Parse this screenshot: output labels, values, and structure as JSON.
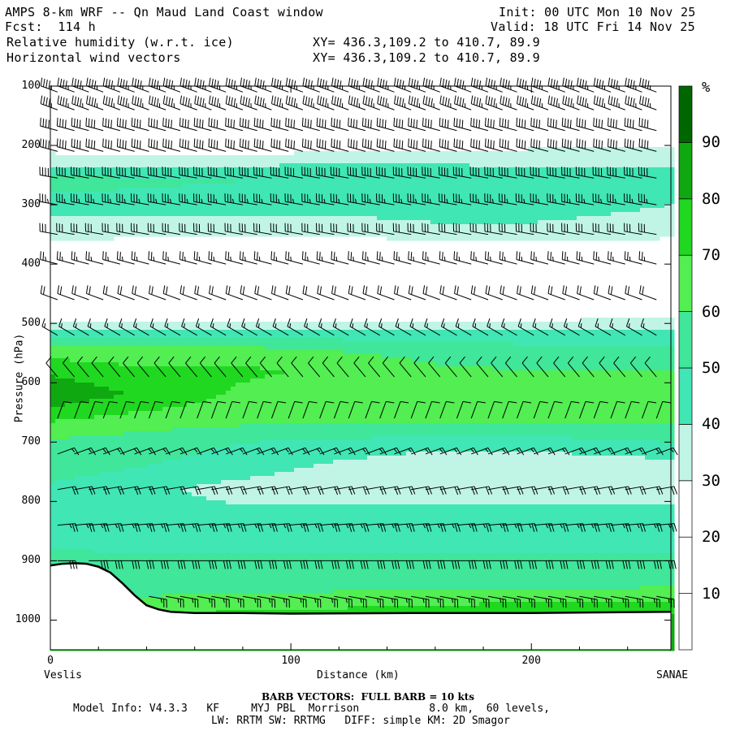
{
  "header": {
    "title": "AMPS 8-km WRF -- Qn Maud Land Coast window",
    "forecast": "Fcst:  114 h",
    "init": "Init: 00 UTC Mon 10 Nov 25",
    "valid": "Valid: 18 UTC Fri 14 Nov 25",
    "field1": "Relative humidity (w.r.t. ice)",
    "field2": "Horizontal wind vectors",
    "xy1": "XY= 436.3,109.2 to 410.7, 89.9",
    "xy2": "XY= 436.3,109.2 to 410.7, 89.9"
  },
  "footer": {
    "barb_note": "BARB VECTORS:  FULL BARB = 10 kts",
    "model_info": "Model Info: V4.3.3   KF     MYJ PBL  Morrison           8.0 km,  60 levels,",
    "model_info2": "LW: RRTM SW: RRTMG   DIFF: simple KM: 2D Smagor"
  },
  "colors": {
    "levels": [
      "#ffffff",
      "#ffffff",
      "#ffffff",
      "#c0f5e6",
      "#40e6b4",
      "#40e69a",
      "#52ee52",
      "#20d820",
      "#10a810",
      "#006600"
    ],
    "background": "#ffffff",
    "terrain_line": "#000000"
  },
  "chart_data": {
    "type": "heatmap",
    "title": "Relative humidity (w.r.t. ice)",
    "xlabel": "Distance (km)",
    "ylabel": "Pressure (hPa)",
    "xlim": [
      0,
      258
    ],
    "ylim": [
      1050,
      100
    ],
    "x_ticks": [
      0,
      100,
      200
    ],
    "y_ticks": [
      100,
      200,
      300,
      400,
      500,
      600,
      700,
      800,
      900,
      1000
    ],
    "x_endpoint_labels": {
      "left": "Veslis",
      "right": "SANAE"
    },
    "colorbar": {
      "unit": "%",
      "levels": [
        0,
        10,
        20,
        30,
        40,
        50,
        60,
        70,
        80,
        90,
        100
      ],
      "tick_labels": [
        "10",
        "20",
        "30",
        "40",
        "50",
        "60",
        "70",
        "80",
        "90"
      ]
    },
    "rh_profile": {
      "pressure": [
        100,
        150,
        200,
        230,
        260,
        300,
        340,
        380,
        420,
        470,
        500,
        540,
        580,
        620,
        660,
        700,
        740,
        780,
        820,
        860,
        900,
        940,
        970,
        990
      ],
      "x": [
        0,
        40,
        80,
        120,
        160,
        200,
        258
      ],
      "values": [
        [
          5,
          5,
          5,
          5,
          5,
          5,
          5
        ],
        [
          8,
          8,
          8,
          8,
          8,
          8,
          8
        ],
        [
          24,
          22,
          22,
          24,
          26,
          28,
          28
        ],
        [
          38,
          38,
          38,
          40,
          40,
          38,
          38
        ],
        [
          55,
          52,
          50,
          48,
          46,
          44,
          44
        ],
        [
          45,
          45,
          44,
          44,
          46,
          46,
          40
        ],
        [
          35,
          35,
          35,
          35,
          38,
          38,
          34
        ],
        [
          25,
          22,
          20,
          20,
          22,
          24,
          24
        ],
        [
          15,
          12,
          12,
          12,
          14,
          14,
          16
        ],
        [
          12,
          10,
          10,
          10,
          12,
          12,
          14
        ],
        [
          35,
          32,
          32,
          32,
          32,
          34,
          36
        ],
        [
          62,
          60,
          60,
          58,
          55,
          52,
          50
        ],
        [
          78,
          72,
          72,
          68,
          62,
          60,
          60
        ],
        [
          88,
          78,
          68,
          62,
          62,
          62,
          62
        ],
        [
          72,
          66,
          64,
          62,
          62,
          64,
          64
        ],
        [
          58,
          55,
          50,
          48,
          45,
          45,
          50
        ],
        [
          55,
          50,
          45,
          38,
          32,
          32,
          36
        ],
        [
          48,
          42,
          36,
          33,
          32,
          32,
          34
        ],
        [
          46,
          44,
          42,
          44,
          44,
          44,
          44
        ],
        [
          48,
          46,
          46,
          46,
          46,
          46,
          46
        ],
        [
          52,
          52,
          52,
          52,
          52,
          52,
          52
        ],
        [
          56,
          56,
          56,
          56,
          56,
          56,
          58
        ],
        [
          62,
          62,
          64,
          66,
          68,
          70,
          72
        ],
        [
          70,
          70,
          72,
          74,
          76,
          78,
          80
        ]
      ]
    },
    "terrain_surface_hPa": {
      "x": [
        0,
        5,
        10,
        15,
        20,
        25,
        30,
        35,
        40,
        45,
        50,
        60,
        80,
        100,
        150,
        200,
        258
      ],
      "p": [
        908,
        905,
        904,
        905,
        910,
        920,
        938,
        958,
        975,
        982,
        986,
        988,
        988,
        989,
        988,
        988,
        986
      ]
    },
    "wind_barbs": {
      "x_columns_km": [
        3,
        10,
        16,
        22,
        29,
        35,
        41,
        48,
        54,
        61,
        67,
        73,
        80,
        86,
        92,
        99,
        105,
        112,
        118,
        124,
        131,
        137,
        143,
        150,
        156,
        162,
        169,
        175,
        182,
        188,
        194,
        201,
        207,
        214,
        220,
        226,
        233,
        239,
        246,
        252
      ],
      "levels": [
        {
          "p": 110,
          "speed_kt": 45,
          "dir_deg": 290
        },
        {
          "p": 140,
          "speed_kt": 45,
          "dir_deg": 290
        },
        {
          "p": 175,
          "speed_kt": 40,
          "dir_deg": 285
        },
        {
          "p": 210,
          "speed_kt": 40,
          "dir_deg": 285
        },
        {
          "p": 255,
          "speed_kt": 40,
          "dir_deg": 280
        },
        {
          "p": 300,
          "speed_kt": 35,
          "dir_deg": 280
        },
        {
          "p": 350,
          "speed_kt": 30,
          "dir_deg": 280
        },
        {
          "p": 400,
          "speed_kt": 25,
          "dir_deg": 285
        },
        {
          "p": 460,
          "speed_kt": 20,
          "dir_deg": 290
        },
        {
          "p": 520,
          "speed_kt": 15,
          "dir_deg": 300
        },
        {
          "p": 590,
          "speed_kt": 10,
          "dir_deg": 320
        },
        {
          "p": 660,
          "speed_kt": 10,
          "dir_deg": 20
        },
        {
          "p": 720,
          "speed_kt": 15,
          "dir_deg": 70
        },
        {
          "p": 780,
          "speed_kt": 20,
          "dir_deg": 80
        },
        {
          "p": 840,
          "speed_kt": 25,
          "dir_deg": 85
        },
        {
          "p": 900,
          "speed_kt": 30,
          "dir_deg": 90
        },
        {
          "p": 960,
          "speed_kt": 25,
          "dir_deg": 100
        }
      ]
    }
  }
}
